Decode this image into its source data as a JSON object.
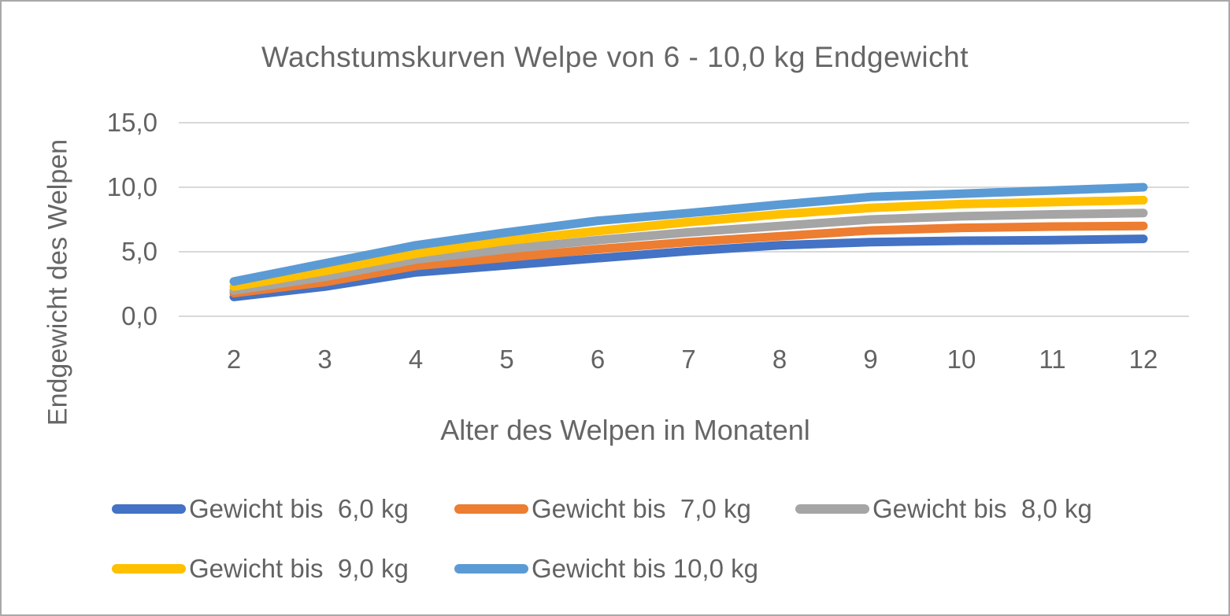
{
  "colors": {
    "background": "#ffffff",
    "frame_border": "#a9a9a9",
    "text": "#636363",
    "gridline": "#d9d9d9"
  },
  "chart_data": {
    "type": "line",
    "title": "Wachstumskurven Welpe von 6 - 10,0 kg Endgewicht",
    "xlabel": "Alter des Welpen in Monatenl",
    "ylabel": "Endgewicht des Welpen",
    "x": [
      2,
      3,
      4,
      5,
      6,
      7,
      8,
      9,
      10,
      11,
      12
    ],
    "ylim": [
      0,
      15
    ],
    "yticks": [
      "0,0",
      "5,0",
      "10,0",
      "15,0"
    ],
    "ytick_values": [
      0,
      5,
      10,
      15
    ],
    "grid": "horizontal",
    "legend_position": "bottom",
    "series": [
      {
        "name": "Gewicht bis  6,0 kg",
        "color": "#4472C4",
        "values": [
          1.5,
          2.3,
          3.4,
          3.95,
          4.5,
          5.05,
          5.5,
          5.75,
          5.85,
          5.9,
          6.0
        ]
      },
      {
        "name": "Gewicht bis  7,0 kg",
        "color": "#ED7D31",
        "values": [
          1.8,
          2.65,
          3.9,
          4.55,
          5.2,
          5.75,
          6.2,
          6.65,
          6.85,
          6.95,
          7.0
        ]
      },
      {
        "name": "Gewicht bis  8,0 kg",
        "color": "#A5A5A5",
        "values": [
          2.0,
          3.05,
          4.4,
          5.2,
          5.9,
          6.5,
          7.0,
          7.5,
          7.75,
          7.9,
          8.0
        ]
      },
      {
        "name": "Gewicht bis  9,0 kg",
        "color": "#FFC000",
        "values": [
          2.3,
          3.5,
          4.85,
          5.85,
          6.6,
          7.3,
          7.9,
          8.4,
          8.7,
          8.85,
          9.0
        ]
      },
      {
        "name": "Gewicht bis 10,0 kg",
        "color": "#5B9BD5",
        "values": [
          2.7,
          4.1,
          5.5,
          6.5,
          7.4,
          8.0,
          8.65,
          9.25,
          9.5,
          9.75,
          10.0
        ]
      }
    ],
    "legend_rows": [
      [
        0,
        1,
        2
      ],
      [
        3,
        4
      ]
    ]
  }
}
